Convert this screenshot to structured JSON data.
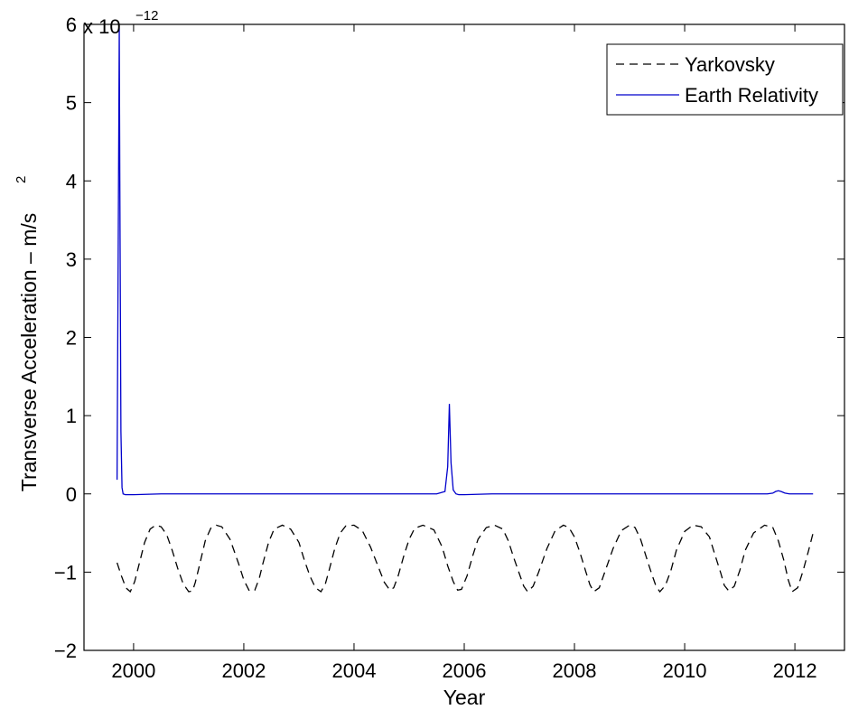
{
  "chart_data": {
    "type": "line",
    "xlabel": "Year",
    "ylabel": "Transverse Acceleration – m/s",
    "ylabel_superscript": "2",
    "y_multiplier_label": "x 10",
    "y_multiplier_exponent": "−12",
    "xlim": [
      1999.1,
      2012.9
    ],
    "ylim": [
      -2,
      6
    ],
    "x_ticks": [
      2000,
      2002,
      2004,
      2006,
      2008,
      2010,
      2012
    ],
    "y_ticks": [
      -2,
      -1,
      0,
      1,
      2,
      3,
      4,
      5,
      6
    ],
    "x_tick_labels": [
      "2000",
      "2002",
      "2004",
      "2006",
      "2008",
      "2010",
      "2012"
    ],
    "y_tick_labels": [
      "−2",
      "−1",
      "0",
      "1",
      "2",
      "3",
      "4",
      "5",
      "6"
    ],
    "grid": false,
    "legend_position": "top-right",
    "series": [
      {
        "name": "Yarkovsky",
        "color": "#000000",
        "style": "dashed",
        "x": [
          1999.7,
          1999.78,
          1999.86,
          1999.94,
          2000.02,
          2000.1,
          2000.2,
          2000.3,
          2000.4,
          2000.5,
          2000.6,
          2000.7,
          2000.8,
          2000.9,
          2001.0,
          2001.07,
          2001.12,
          2001.2,
          2001.3,
          2001.4,
          2001.5,
          2001.6,
          2001.75,
          2001.9,
          2002.0,
          2002.1,
          2002.2,
          2002.28,
          2002.35,
          2002.45,
          2002.55,
          2002.7,
          2002.85,
          2003.0,
          2003.1,
          2003.2,
          2003.3,
          2003.4,
          2003.48,
          2003.55,
          2003.65,
          2003.75,
          2003.85,
          2004.0,
          2004.15,
          2004.3,
          2004.45,
          2004.55,
          2004.65,
          2004.72,
          2004.8,
          2004.9,
          2005.0,
          2005.1,
          2005.25,
          2005.45,
          2005.6,
          2005.7,
          2005.8,
          2005.88,
          2005.95,
          2006.05,
          2006.15,
          2006.25,
          2006.4,
          2006.55,
          2006.7,
          2006.8,
          2006.9,
          2007.0,
          2007.08,
          2007.15,
          2007.25,
          2007.35,
          2007.5,
          2007.65,
          2007.8,
          2007.9,
          2008.0,
          2008.1,
          2008.2,
          2008.28,
          2008.35,
          2008.45,
          2008.55,
          2008.7,
          2008.85,
          2009.0,
          2009.1,
          2009.2,
          2009.3,
          2009.4,
          2009.48,
          2009.55,
          2009.65,
          2009.75,
          2009.85,
          2010.0,
          2010.15,
          2010.3,
          2010.45,
          2010.55,
          2010.65,
          2010.72,
          2010.8,
          2010.9,
          2011.0,
          2011.1,
          2011.25,
          2011.45,
          2011.6,
          2011.7,
          2011.8,
          2011.88,
          2011.95,
          2012.05,
          2012.15,
          2012.25,
          2012.33
        ],
        "y": [
          -0.88,
          -1.05,
          -1.2,
          -1.25,
          -1.12,
          -0.9,
          -0.62,
          -0.45,
          -0.4,
          -0.42,
          -0.52,
          -0.72,
          -0.95,
          -1.15,
          -1.25,
          -1.24,
          -1.13,
          -0.9,
          -0.6,
          -0.44,
          -0.4,
          -0.42,
          -0.58,
          -0.88,
          -1.1,
          -1.24,
          -1.23,
          -1.08,
          -0.88,
          -0.62,
          -0.45,
          -0.4,
          -0.45,
          -0.62,
          -0.85,
          -1.05,
          -1.2,
          -1.25,
          -1.15,
          -0.97,
          -0.7,
          -0.5,
          -0.41,
          -0.4,
          -0.47,
          -0.68,
          -0.95,
          -1.13,
          -1.23,
          -1.2,
          -1.05,
          -0.8,
          -0.58,
          -0.44,
          -0.4,
          -0.46,
          -0.68,
          -0.92,
          -1.12,
          -1.23,
          -1.22,
          -1.05,
          -0.8,
          -0.58,
          -0.43,
          -0.4,
          -0.45,
          -0.6,
          -0.82,
          -1.02,
          -1.18,
          -1.25,
          -1.18,
          -1.0,
          -0.7,
          -0.47,
          -0.4,
          -0.43,
          -0.55,
          -0.75,
          -0.98,
          -1.16,
          -1.25,
          -1.2,
          -1.0,
          -0.7,
          -0.47,
          -0.4,
          -0.43,
          -0.58,
          -0.8,
          -1.02,
          -1.18,
          -1.25,
          -1.17,
          -0.98,
          -0.72,
          -0.48,
          -0.4,
          -0.42,
          -0.55,
          -0.78,
          -1.0,
          -1.17,
          -1.24,
          -1.18,
          -0.98,
          -0.72,
          -0.5,
          -0.4,
          -0.43,
          -0.6,
          -0.85,
          -1.1,
          -1.25,
          -1.2,
          -0.98,
          -0.72,
          -0.5
        ]
      },
      {
        "name": "Earth Relativity",
        "color": "#0000cc",
        "style": "solid",
        "x": [
          1999.7,
          1999.72,
          1999.74,
          1999.75,
          1999.77,
          1999.79,
          1999.81,
          1999.85,
          2000.0,
          2000.5,
          2001.0,
          2002.0,
          2003.0,
          2004.0,
          2005.0,
          2005.5,
          2005.65,
          2005.7,
          2005.73,
          2005.76,
          2005.8,
          2005.85,
          2005.9,
          2006.0,
          2006.5,
          2007.0,
          2008.0,
          2009.0,
          2010.0,
          2011.0,
          2011.5,
          2011.6,
          2011.65,
          2011.7,
          2011.75,
          2011.82,
          2011.9,
          2012.0,
          2012.33
        ],
        "y": [
          0.18,
          3.0,
          5.95,
          4.0,
          0.8,
          0.08,
          0.0,
          -0.01,
          -0.01,
          0.0,
          0.0,
          0.0,
          0.0,
          0.0,
          0.0,
          0.0,
          0.03,
          0.35,
          1.15,
          0.4,
          0.05,
          0.0,
          -0.01,
          -0.01,
          0.0,
          0.0,
          0.0,
          0.0,
          0.0,
          0.0,
          0.0,
          0.01,
          0.03,
          0.04,
          0.03,
          0.01,
          0.0,
          0.0,
          0.0
        ]
      }
    ]
  }
}
